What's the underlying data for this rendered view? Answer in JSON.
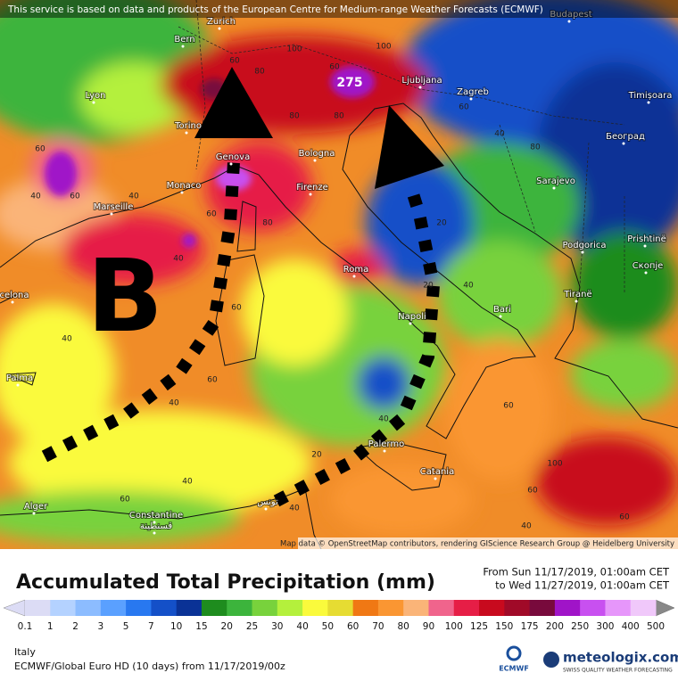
{
  "header": {
    "notice": "This service is based on data and products of the European Centre for Medium-range Weather Forecasts (ECMWF)"
  },
  "map": {
    "cities": [
      "Zurich",
      "Budapest",
      "Bern",
      "Lyon",
      "Ljubljana",
      "Zagreb",
      "Timișoara",
      "Torino",
      "Београд",
      "Genova",
      "Bologna",
      "Monaco",
      "Sarajevo",
      "Marseille",
      "Firenze",
      "Podgorica",
      "Prishtinë",
      "Roma",
      "Скопје",
      "celona",
      "Tiranë",
      "Napoli",
      "Bari",
      "Palma",
      "Palermo",
      "Catania",
      "Alger",
      "Constantine",
      "قسنطينة",
      "تونس"
    ],
    "peak_label": 275,
    "contour_labels": [
      60,
      80,
      100,
      60,
      80,
      60,
      40,
      60,
      40,
      60,
      80,
      40,
      60,
      40,
      20,
      20,
      40,
      40,
      60,
      80,
      40,
      60,
      100,
      60,
      40,
      40,
      60,
      40,
      20,
      60,
      80,
      100,
      60,
      40
    ],
    "low_label": "B",
    "attribution": "Map data © OpenStreetMap contributors, rendering GIScience Research Group @ Heidelberg University"
  },
  "footer": {
    "title": "Accumulated Total Precipitation (mm)",
    "period_from": "From Sun 11/17/2019, 01:00am CET",
    "period_to": "to Wed 11/27/2019, 01:00am CET",
    "scale_ticks": [
      0.1,
      1,
      2,
      3,
      5,
      7,
      10,
      15,
      20,
      25,
      30,
      40,
      50,
      60,
      70,
      80,
      90,
      100,
      125,
      150,
      175,
      200,
      250,
      300,
      400,
      500
    ],
    "scale_colors": [
      "#dcdcf5",
      "#b4d2ff",
      "#8cbcff",
      "#5aa0ff",
      "#2878f0",
      "#1450c8",
      "#0a3296",
      "#1e8c1e",
      "#3cb43c",
      "#78d23c",
      "#b4f03c",
      "#fafa3c",
      "#e6dc32",
      "#f07814",
      "#fa9632",
      "#fab478",
      "#f0648c",
      "#e61e46",
      "#c80a1e",
      "#a00a28",
      "#780a3c",
      "#a014c8",
      "#c850f0",
      "#e696fa",
      "#f0c8fa"
    ],
    "region": "Italy",
    "model": "ECMWF/Global Euro HD (10 days) from 11/17/2019/00z",
    "ecmwf_logo": "ECMWF",
    "brand": "meteologix.com",
    "tagline": "SWISS QUALITY WEATHER FORECASTING"
  }
}
